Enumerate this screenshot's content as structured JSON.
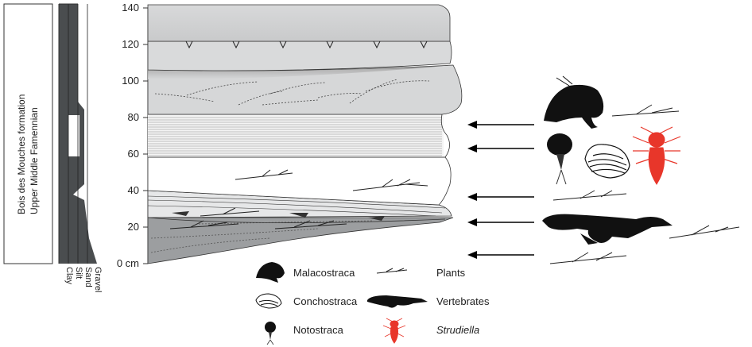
{
  "formation": {
    "line1": "Bois des Mouches formation",
    "line2": "Upper Middle Famennian"
  },
  "grain_size": [
    "Clay",
    "Silt",
    "Sand",
    "Gravel"
  ],
  "depth_axis": {
    "ticks": [
      "140",
      "120",
      "100",
      "80",
      "60",
      "40",
      "20",
      "0 cm"
    ],
    "values": [
      140,
      120,
      100,
      80,
      60,
      40,
      20,
      0
    ],
    "unit": "cm"
  },
  "legend": [
    {
      "icon": "malacostraca-icon",
      "label": "Malacostraca"
    },
    {
      "icon": "plant-icon",
      "label": "Plants"
    },
    {
      "icon": "conchostraca-icon",
      "label": "Conchostraca"
    },
    {
      "icon": "vertebrate-icon",
      "label": "Vertebrates"
    },
    {
      "icon": "notostraca-icon",
      "label": "Notostraca"
    },
    {
      "icon": "strudiella-icon",
      "label": "Strudiella"
    }
  ],
  "colors": {
    "dark_grey": "#4a4d4f",
    "light_grey": "#d4d5d6",
    "mid_grey": "#bfc0c1",
    "red": "#e8362a"
  }
}
